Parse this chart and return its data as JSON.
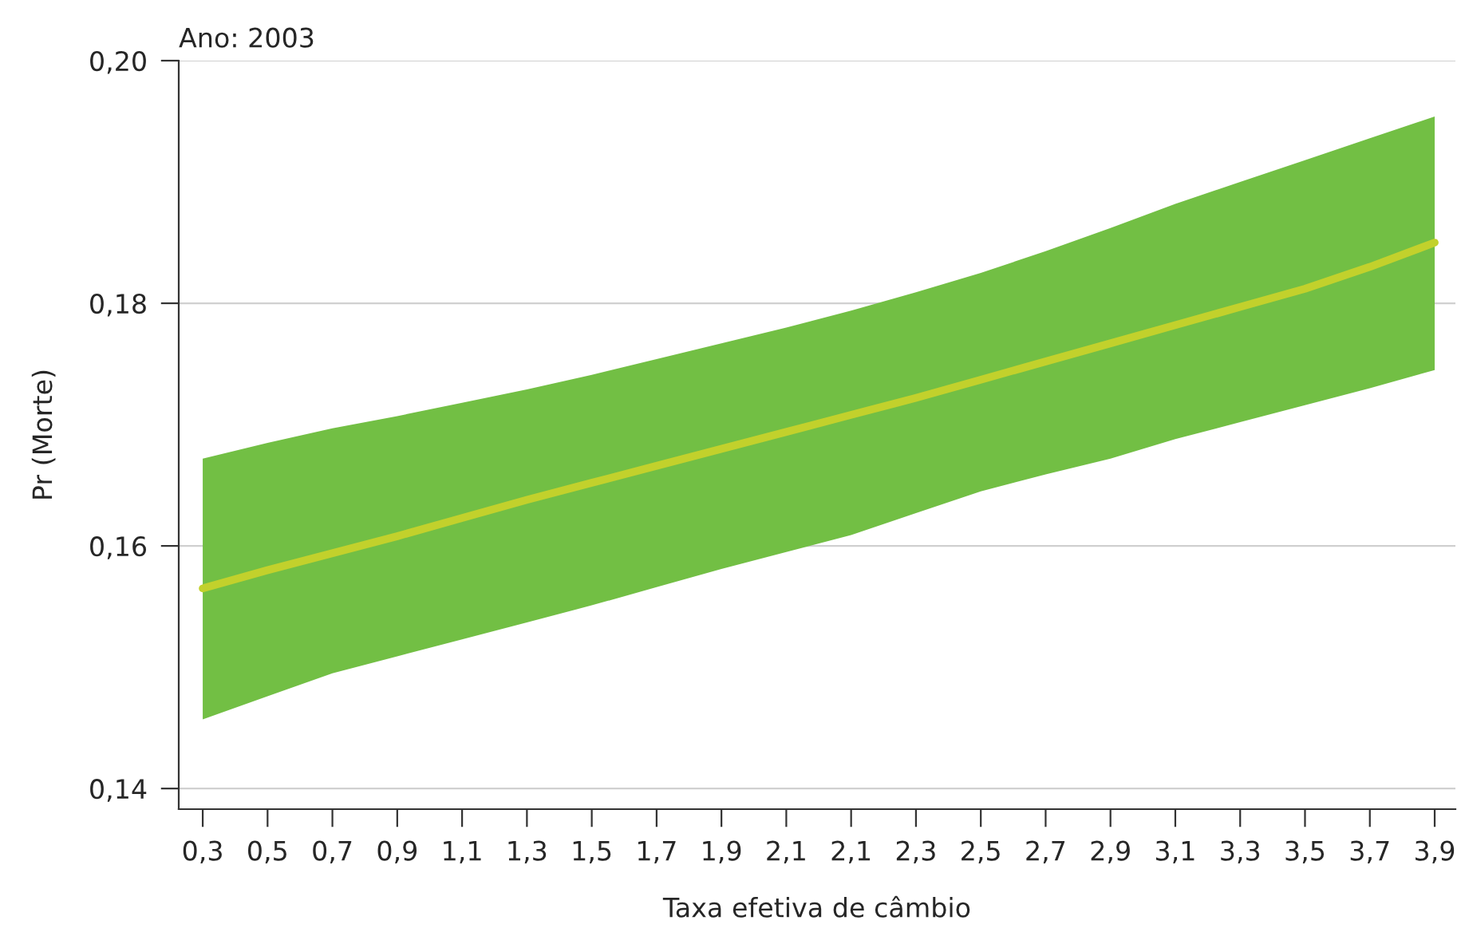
{
  "chart_data": {
    "type": "line",
    "title": "Ano: 2003",
    "xlabel": "Taxa efetiva de câmbio",
    "ylabel": "Pr (Morte)",
    "categories": [
      "0,3",
      "0,5",
      "0,7",
      "0,9",
      "1,1",
      "1,3",
      "1,5",
      "1,7",
      "1,9",
      "2,1",
      "2,1",
      "2,3",
      "2,5",
      "2,7",
      "2,9",
      "3,1",
      "3,3",
      "3,5",
      "3,7",
      "3,9"
    ],
    "series": [
      {
        "color": "#c2d12c",
        "values": [
          0.1565,
          0.158,
          0.1594,
          0.1608,
          0.1623,
          0.1638,
          0.1652,
          0.1666,
          0.168,
          0.1694,
          0.1708,
          0.1722,
          0.1737,
          0.1752,
          0.1767,
          0.1782,
          0.1797,
          0.1812,
          0.183,
          0.185
        ],
        "lower": [
          0.1457,
          0.1476,
          0.1495,
          0.1509,
          0.1523,
          0.1537,
          0.1551,
          0.1566,
          0.1581,
          0.1595,
          0.1609,
          0.1627,
          0.1645,
          0.1659,
          0.1672,
          0.1688,
          0.1702,
          0.1716,
          0.173,
          0.1745
        ],
        "upper": [
          0.1672,
          0.1685,
          0.1697,
          0.1707,
          0.1718,
          0.1729,
          0.1741,
          0.1754,
          0.1767,
          0.178,
          0.1794,
          0.1809,
          0.1825,
          0.1843,
          0.1862,
          0.1882,
          0.19,
          0.1918,
          0.1936,
          0.1954
        ]
      }
    ],
    "ylim": [
      0.1383,
      0.2
    ],
    "yticks": [
      {
        "value": 0.14,
        "label": "0,14"
      },
      {
        "value": 0.16,
        "label": "0,16"
      },
      {
        "value": 0.18,
        "label": "0,18"
      },
      {
        "value": 0.2,
        "label": "0,20"
      }
    ],
    "grid": "y",
    "legend": false,
    "marker": "none",
    "line_style": "solid"
  }
}
